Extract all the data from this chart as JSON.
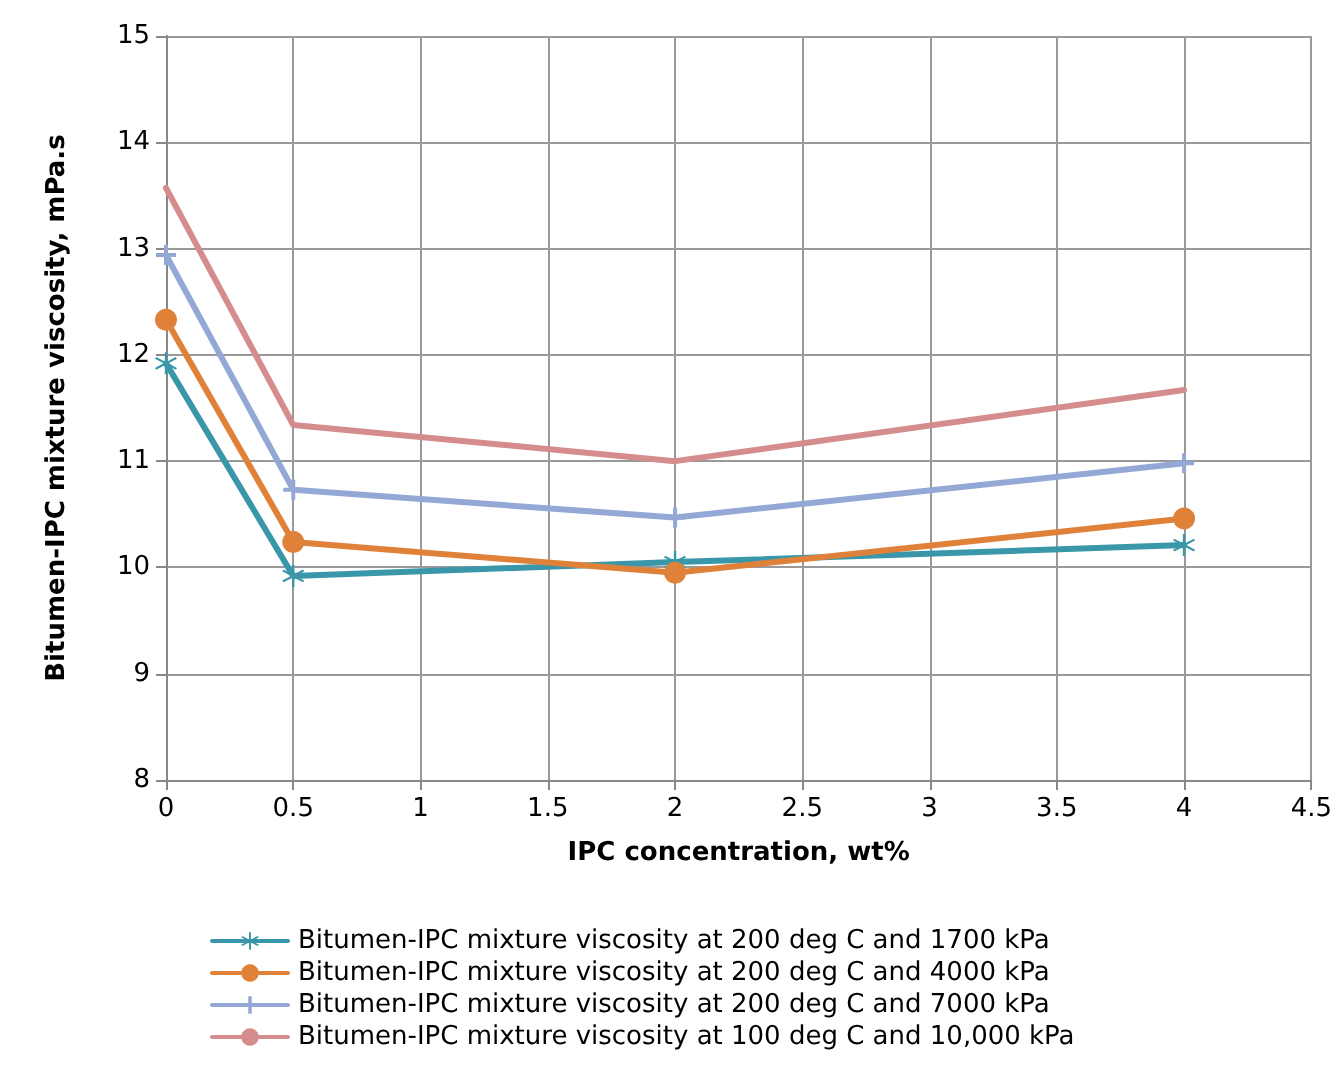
{
  "chart_data": {
    "type": "line",
    "xlabel": "IPC concentration, wt%",
    "ylabel": "Bitumen-IPC mixture viscosity, mPa.s",
    "x": [
      0,
      0.5,
      2,
      4
    ],
    "series": [
      {
        "name": "Bitumen-IPC mixture viscosity at 200 deg C and 1700 kPa",
        "color": "#3a97a9",
        "marker": "star",
        "values": [
          11.92,
          9.92,
          10.05,
          10.21
        ]
      },
      {
        "name": "Bitumen-IPC mixture viscosity at 200 deg C and 4000 kPa",
        "color": "#e0813a",
        "marker": "circle",
        "values": [
          12.33,
          10.24,
          9.95,
          10.46
        ]
      },
      {
        "name": "Bitumen-IPC mixture viscosity at 200 deg C and 7000 kPa",
        "color": "#94a8d6",
        "marker": "cross",
        "values": [
          12.94,
          10.73,
          10.47,
          10.98
        ]
      },
      {
        "name": "Bitumen-IPC mixture viscosity at 100 deg C and 10,000 kPa",
        "color": "#d48c8c",
        "marker": "none",
        "values": [
          13.57,
          11.34,
          11.0,
          11.67
        ]
      }
    ],
    "xlim": [
      0,
      4.5
    ],
    "xticks": [
      0,
      0.5,
      1,
      1.5,
      2,
      2.5,
      3,
      3.5,
      4,
      4.5
    ],
    "ylim": [
      8,
      15
    ],
    "yticks": [
      8,
      9,
      10,
      11,
      12,
      13,
      14,
      15
    ],
    "grid": true,
    "legend": "bottom",
    "line_style": "solid"
  }
}
